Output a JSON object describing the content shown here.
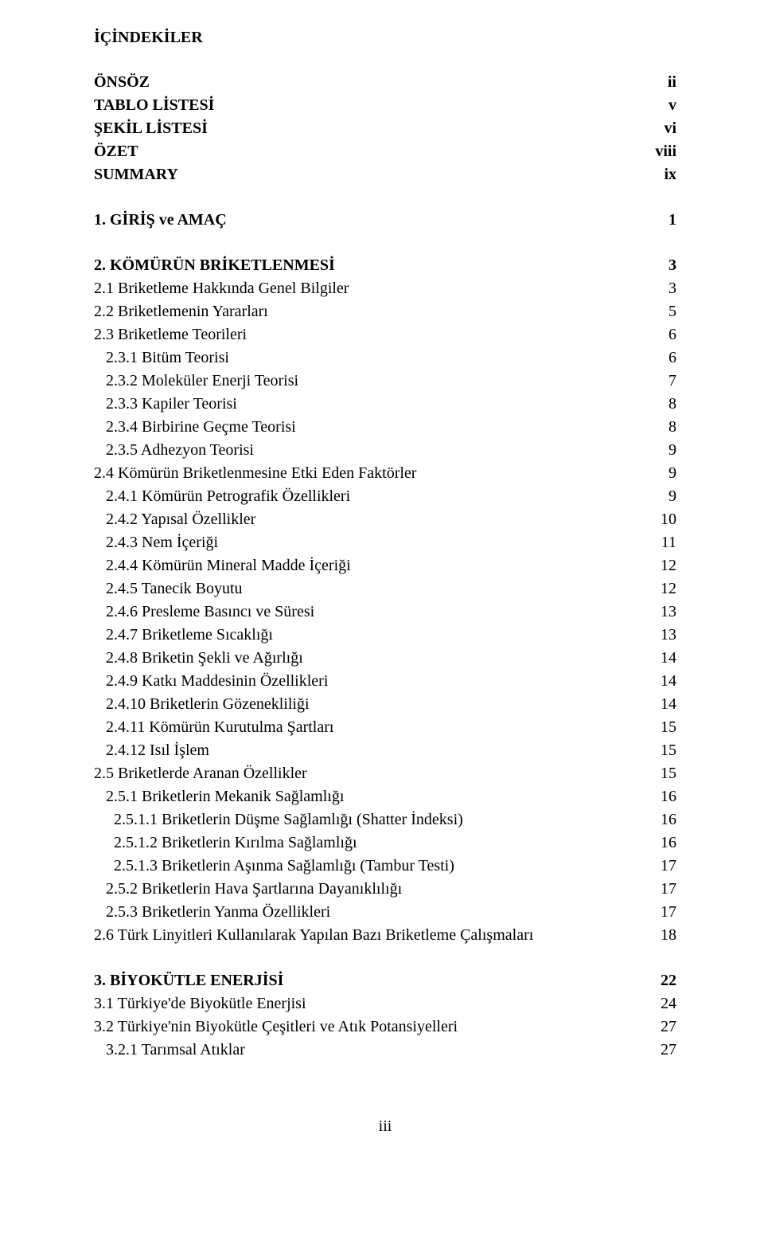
{
  "heading": "İÇİNDEKİLER",
  "frontmatter": [
    {
      "label": "ÖNSÖZ",
      "page": "ii",
      "bold": true
    },
    {
      "label": "TABLO LİSTESİ",
      "page": "v",
      "bold": true
    },
    {
      "label": "ŞEKİL LİSTESİ",
      "page": "vi",
      "bold": true
    },
    {
      "label": "ÖZET",
      "page": "viii",
      "bold": true
    },
    {
      "label": "SUMMARY",
      "page": "ix",
      "bold": true
    }
  ],
  "section1": [
    {
      "label": "1. GİRİŞ ve AMAÇ",
      "page": "1",
      "bold": true
    }
  ],
  "section2": [
    {
      "label": "2. KÖMÜRÜN BRİKETLENMESİ",
      "page": "3",
      "bold": true
    },
    {
      "label": "2.1 Briketleme Hakkında Genel Bilgiler",
      "page": "3"
    },
    {
      "label": "2.2 Briketlemenin Yararları",
      "page": "5"
    },
    {
      "label": "2.3 Briketleme Teorileri",
      "page": "6"
    },
    {
      "label": "   2.3.1 Bitüm Teorisi",
      "page": "6"
    },
    {
      "label": "   2.3.2 Moleküler Enerji Teorisi",
      "page": "7"
    },
    {
      "label": "   2.3.3 Kapiler Teorisi",
      "page": "8"
    },
    {
      "label": "   2.3.4 Birbirine Geçme Teorisi",
      "page": "8"
    },
    {
      "label": "   2.3.5 Adhezyon Teorisi",
      "page": "9"
    },
    {
      "label": "2.4 Kömürün Briketlenmesine Etki Eden Faktörler",
      "page": "9"
    },
    {
      "label": "   2.4.1 Kömürün Petrografik Özellikleri",
      "page": "9"
    },
    {
      "label": "   2.4.2 Yapısal Özellikler",
      "page": "10"
    },
    {
      "label": "   2.4.3 Nem İçeriği",
      "page": "11"
    },
    {
      "label": "   2.4.4 Kömürün Mineral Madde İçeriği",
      "page": "12"
    },
    {
      "label": "   2.4.5 Tanecik Boyutu",
      "page": "12"
    },
    {
      "label": "   2.4.6 Presleme Basıncı ve Süresi",
      "page": "13"
    },
    {
      "label": "   2.4.7 Briketleme Sıcaklığı",
      "page": "13"
    },
    {
      "label": "   2.4.8 Briketin Şekli ve Ağırlığı",
      "page": "14"
    },
    {
      "label": "   2.4.9 Katkı Maddesinin Özellikleri",
      "page": "14"
    },
    {
      "label": "   2.4.10 Briketlerin Gözenekliliği",
      "page": "14"
    },
    {
      "label": "   2.4.11 Kömürün Kurutulma Şartları",
      "page": "15"
    },
    {
      "label": "   2.4.12 Isıl İşlem",
      "page": "15"
    },
    {
      "label": "2.5 Briketlerde Aranan Özellikler",
      "page": "15"
    },
    {
      "label": "   2.5.1 Briketlerin Mekanik Sağlamlığı",
      "page": "16"
    },
    {
      "label": "     2.5.1.1 Briketlerin Düşme Sağlamlığı (Shatter İndeksi)",
      "page": "16"
    },
    {
      "label": "     2.5.1.2 Briketlerin Kırılma Sağlamlığı",
      "page": "16"
    },
    {
      "label": "     2.5.1.3 Briketlerin Aşınma Sağlamlığı (Tambur Testi)",
      "page": "17"
    },
    {
      "label": "   2.5.2 Briketlerin Hava Şartlarına Dayanıklılığı",
      "page": "17"
    },
    {
      "label": "   2.5.3 Briketlerin Yanma Özellikleri",
      "page": "17"
    },
    {
      "label": "2.6 Türk Linyitleri Kullanılarak Yapılan Bazı Briketleme Çalışmaları",
      "page": "18"
    }
  ],
  "section3": [
    {
      "label": "3. BİYOKÜTLE ENERJİSİ",
      "page": "22",
      "bold": true
    },
    {
      "label": "3.1 Türkiye'de Biyokütle Enerjisi",
      "page": "24"
    },
    {
      "label": "3.2 Türkiye'nin Biyokütle Çeşitleri ve Atık Potansiyelleri",
      "page": "27"
    },
    {
      "label": "   3.2.1 Tarımsal Atıklar",
      "page": "27"
    }
  ],
  "footer": "iii"
}
